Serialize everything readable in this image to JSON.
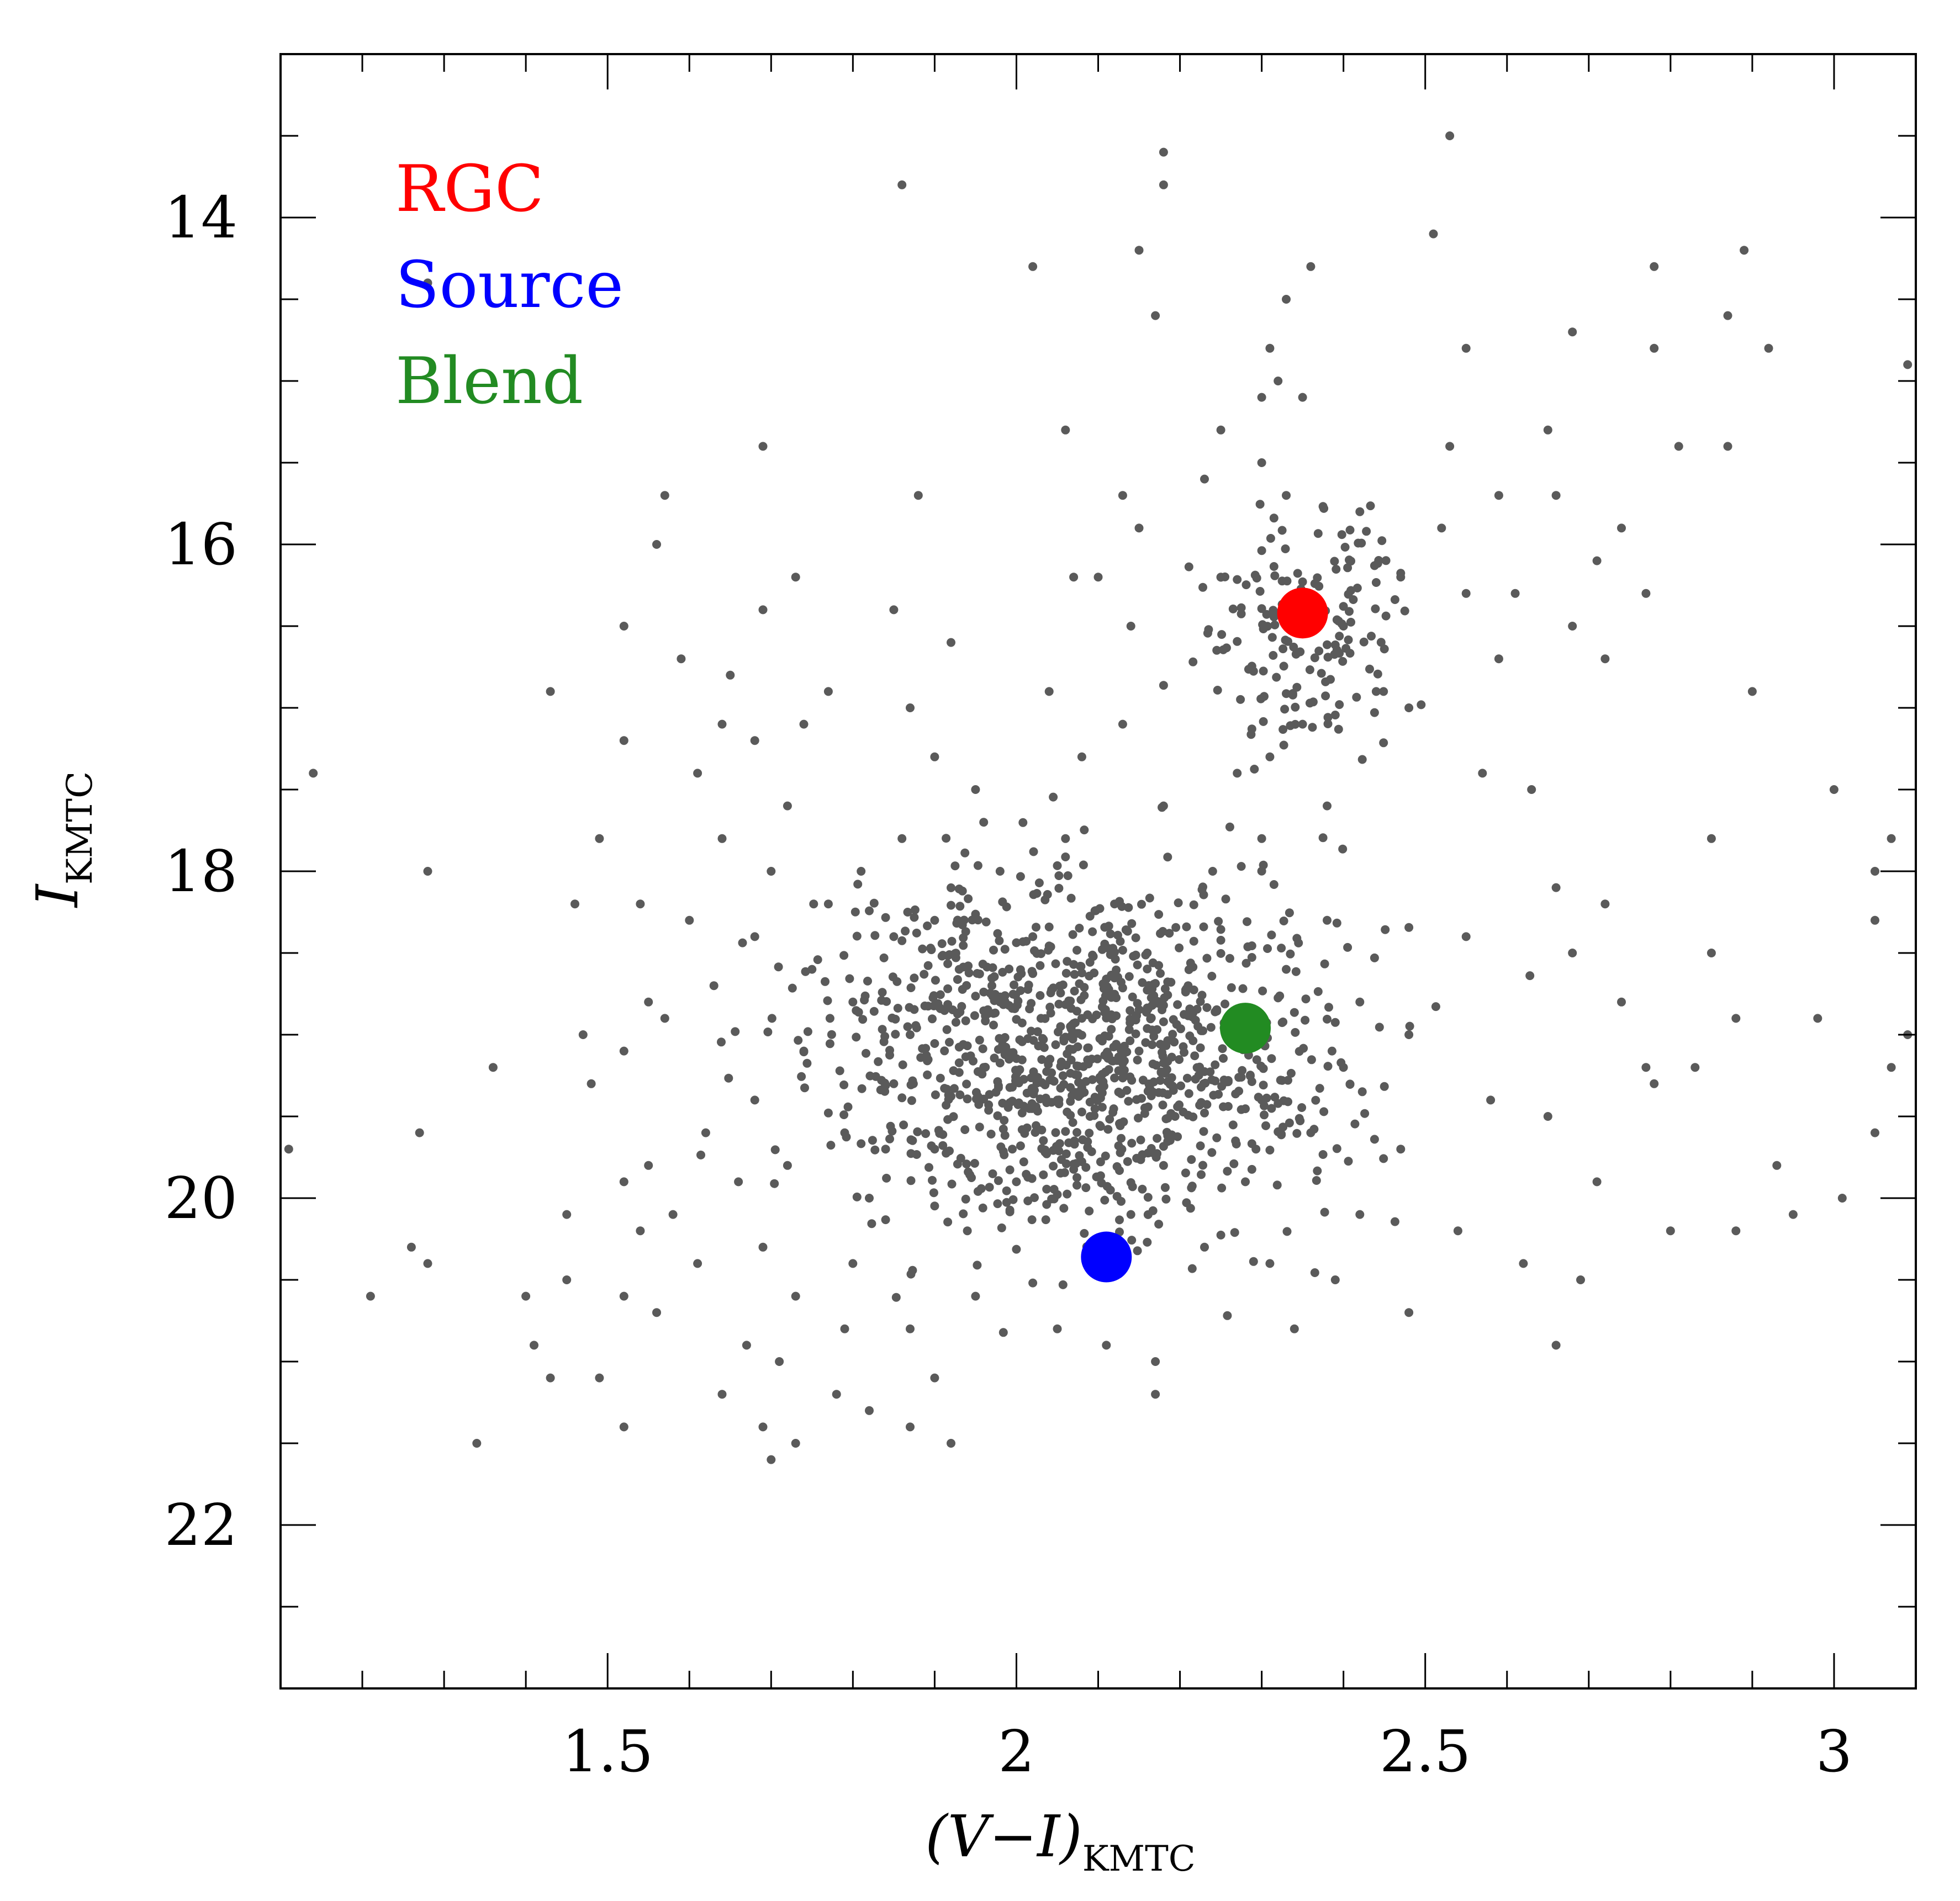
{
  "chart_data": {
    "type": "scatter",
    "title": "",
    "xlabel": "(V−I)",
    "xlabel_sub": "KMTC",
    "ylabel": "I",
    "ylabel_sub": "KMTC",
    "xlim": [
      1.1,
      3.1
    ],
    "ylim": [
      23,
      13
    ],
    "y_inverted": true,
    "x_major_ticks": [
      1.5,
      2,
      2.5,
      3
    ],
    "x_major_tick_labels": [
      "1.5",
      "2",
      "2.5",
      "3"
    ],
    "x_minor_step": 0.1,
    "y_major_ticks": [
      14,
      16,
      18,
      20,
      22
    ],
    "y_major_tick_labels": [
      "14",
      "16",
      "18",
      "20",
      "22"
    ],
    "y_minor_step": 0.5,
    "grid": false,
    "legend_position": "top-left",
    "background_star_color": "#5a5a5a",
    "highlight_series": [
      {
        "name": "RGC",
        "color": "#ff0000",
        "x": 2.35,
        "y": 16.42
      },
      {
        "name": "Source",
        "color": "#0000ff",
        "x": 2.11,
        "y": 20.36
      },
      {
        "name": "Blend",
        "color": "#228b22",
        "x": 2.28,
        "y": 18.96
      }
    ],
    "background_stars": {
      "count_approx": 1500,
      "points": [
        [
          2.18,
          13.6
        ],
        [
          2.53,
          13.5
        ],
        [
          1.86,
          13.8
        ],
        [
          2.18,
          13.8
        ],
        [
          2.51,
          14.1
        ],
        [
          2.15,
          14.2
        ],
        [
          2.02,
          14.3
        ],
        [
          2.36,
          14.3
        ],
        [
          2.78,
          14.3
        ],
        [
          2.89,
          14.2
        ],
        [
          1.28,
          14.4
        ],
        [
          2.33,
          14.5
        ],
        [
          2.17,
          14.6
        ],
        [
          2.87,
          14.6
        ],
        [
          2.31,
          14.8
        ],
        [
          2.55,
          14.8
        ],
        [
          2.68,
          14.7
        ],
        [
          2.78,
          14.8
        ],
        [
          2.92,
          14.8
        ],
        [
          3.09,
          14.9
        ],
        [
          2.32,
          15.0
        ],
        [
          2.3,
          15.1
        ],
        [
          2.35,
          15.1
        ],
        [
          2.06,
          15.3
        ],
        [
          2.25,
          15.3
        ],
        [
          2.53,
          15.4
        ],
        [
          2.65,
          15.3
        ],
        [
          2.81,
          15.4
        ],
        [
          2.87,
          15.4
        ],
        [
          1.69,
          15.4
        ],
        [
          2.3,
          15.5
        ],
        [
          1.88,
          15.7
        ],
        [
          2.13,
          15.7
        ],
        [
          2.23,
          15.6
        ],
        [
          2.33,
          15.7
        ],
        [
          2.59,
          15.7
        ],
        [
          2.66,
          15.7
        ],
        [
          1.57,
          15.7
        ],
        [
          2.42,
          15.8
        ],
        [
          2.52,
          15.9
        ],
        [
          2.74,
          15.9
        ],
        [
          2.15,
          15.9
        ],
        [
          1.56,
          16.0
        ],
        [
          2.71,
          16.1
        ],
        [
          1.73,
          16.2
        ],
        [
          2.07,
          16.2
        ],
        [
          2.1,
          16.2
        ],
        [
          2.25,
          16.2
        ],
        [
          2.47,
          16.2
        ],
        [
          2.55,
          16.3
        ],
        [
          2.61,
          16.3
        ],
        [
          2.77,
          16.3
        ],
        [
          1.52,
          16.5
        ],
        [
          1.69,
          16.4
        ],
        [
          1.85,
          16.4
        ],
        [
          2.14,
          16.5
        ],
        [
          2.4,
          16.5
        ],
        [
          2.68,
          16.5
        ],
        [
          1.59,
          16.7
        ],
        [
          1.92,
          16.6
        ],
        [
          2.59,
          16.7
        ],
        [
          2.72,
          16.7
        ],
        [
          1.43,
          16.9
        ],
        [
          1.65,
          16.8
        ],
        [
          1.77,
          16.9
        ],
        [
          2.04,
          16.9
        ],
        [
          2.44,
          16.9
        ],
        [
          2.9,
          16.9
        ],
        [
          1.64,
          17.1
        ],
        [
          1.74,
          17.1
        ],
        [
          1.87,
          17.0
        ],
        [
          2.13,
          17.1
        ],
        [
          2.35,
          17.1
        ],
        [
          2.48,
          17.0
        ],
        [
          1.52,
          17.2
        ],
        [
          1.68,
          17.2
        ],
        [
          1.9,
          17.3
        ],
        [
          2.08,
          17.3
        ],
        [
          2.31,
          17.3
        ],
        [
          1.14,
          17.4
        ],
        [
          1.61,
          17.4
        ],
        [
          1.95,
          17.5
        ],
        [
          2.27,
          17.4
        ],
        [
          2.57,
          17.4
        ],
        [
          2.63,
          17.5
        ],
        [
          1.72,
          17.6
        ],
        [
          1.96,
          17.7
        ],
        [
          2.18,
          17.6
        ],
        [
          2.38,
          17.6
        ],
        [
          3.0,
          17.5
        ],
        [
          1.49,
          17.8
        ],
        [
          1.64,
          17.8
        ],
        [
          1.86,
          17.8
        ],
        [
          2.06,
          17.8
        ],
        [
          2.3,
          17.8
        ],
        [
          2.85,
          17.8
        ],
        [
          3.07,
          17.8
        ],
        [
          1.28,
          18.0
        ],
        [
          1.7,
          18.0
        ],
        [
          1.81,
          18.0
        ],
        [
          1.98,
          18.0
        ],
        [
          2.24,
          18.0
        ],
        [
          2.66,
          18.1
        ],
        [
          3.05,
          18.0
        ],
        [
          1.46,
          18.2
        ],
        [
          1.54,
          18.2
        ],
        [
          1.77,
          18.2
        ],
        [
          1.9,
          18.3
        ],
        [
          2.12,
          18.2
        ],
        [
          2.38,
          18.3
        ],
        [
          2.72,
          18.2
        ],
        [
          1.6,
          18.3
        ],
        [
          1.68,
          18.4
        ],
        [
          1.85,
          18.4
        ],
        [
          2.02,
          18.4
        ],
        [
          2.55,
          18.4
        ],
        [
          3.05,
          18.3
        ],
        [
          1.75,
          18.6
        ],
        [
          1.93,
          18.6
        ],
        [
          2.16,
          18.5
        ],
        [
          2.33,
          18.6
        ],
        [
          2.68,
          18.5
        ],
        [
          2.85,
          18.5
        ],
        [
          1.55,
          18.8
        ],
        [
          1.63,
          18.7
        ],
        [
          1.8,
          18.8
        ],
        [
          1.98,
          18.8
        ],
        [
          2.21,
          18.7
        ],
        [
          2.42,
          18.8
        ],
        [
          2.74,
          18.8
        ],
        [
          1.57,
          18.9
        ],
        [
          1.47,
          19.0
        ],
        [
          1.87,
          19.0
        ],
        [
          2.03,
          18.9
        ],
        [
          2.48,
          19.0
        ],
        [
          2.88,
          18.9
        ],
        [
          2.98,
          18.9
        ],
        [
          3.09,
          19.0
        ],
        [
          1.36,
          19.2
        ],
        [
          1.52,
          19.1
        ],
        [
          1.74,
          19.1
        ],
        [
          1.96,
          19.2
        ],
        [
          2.15,
          19.1
        ],
        [
          2.4,
          19.2
        ],
        [
          2.77,
          19.2
        ],
        [
          2.83,
          19.2
        ],
        [
          3.07,
          19.2
        ],
        [
          1.48,
          19.3
        ],
        [
          1.68,
          19.4
        ],
        [
          1.85,
          19.3
        ],
        [
          2.05,
          19.4
        ],
        [
          2.3,
          19.4
        ],
        [
          2.58,
          19.4
        ],
        [
          2.78,
          19.3
        ],
        [
          1.27,
          19.6
        ],
        [
          1.62,
          19.6
        ],
        [
          1.79,
          19.6
        ],
        [
          2.09,
          19.5
        ],
        [
          2.36,
          19.6
        ],
        [
          2.65,
          19.5
        ],
        [
          3.05,
          19.6
        ],
        [
          1.11,
          19.7
        ],
        [
          1.55,
          19.8
        ],
        [
          1.72,
          19.8
        ],
        [
          1.9,
          19.7
        ],
        [
          2.18,
          19.8
        ],
        [
          2.47,
          19.7
        ],
        [
          2.93,
          19.8
        ],
        [
          1.52,
          19.9
        ],
        [
          1.66,
          19.9
        ],
        [
          2.0,
          19.9
        ],
        [
          2.28,
          19.9
        ],
        [
          2.71,
          19.9
        ],
        [
          3.01,
          20.0
        ],
        [
          1.45,
          20.1
        ],
        [
          1.58,
          20.1
        ],
        [
          1.82,
          20.0
        ],
        [
          2.14,
          20.1
        ],
        [
          2.42,
          20.1
        ],
        [
          2.95,
          20.1
        ],
        [
          1.26,
          20.3
        ],
        [
          1.54,
          20.2
        ],
        [
          1.69,
          20.3
        ],
        [
          1.94,
          20.2
        ],
        [
          2.23,
          20.3
        ],
        [
          2.54,
          20.2
        ],
        [
          2.8,
          20.2
        ],
        [
          2.88,
          20.2
        ],
        [
          1.28,
          20.4
        ],
        [
          1.61,
          20.4
        ],
        [
          1.8,
          20.4
        ],
        [
          2.31,
          20.4
        ],
        [
          2.62,
          20.4
        ],
        [
          1.21,
          20.6
        ],
        [
          1.45,
          20.5
        ],
        [
          1.52,
          20.6
        ],
        [
          1.73,
          20.6
        ],
        [
          1.95,
          20.6
        ],
        [
          2.39,
          20.5
        ],
        [
          2.69,
          20.5
        ],
        [
          1.4,
          20.6
        ],
        [
          1.56,
          20.7
        ],
        [
          1.87,
          20.8
        ],
        [
          2.05,
          20.8
        ],
        [
          2.34,
          20.8
        ],
        [
          2.48,
          20.7
        ],
        [
          1.41,
          20.9
        ],
        [
          1.67,
          20.9
        ],
        [
          1.79,
          20.8
        ],
        [
          2.11,
          20.9
        ],
        [
          2.66,
          20.9
        ],
        [
          1.43,
          21.1
        ],
        [
          1.49,
          21.1
        ],
        [
          1.71,
          21.0
        ],
        [
          1.9,
          21.1
        ],
        [
          2.17,
          21.0
        ],
        [
          1.64,
          21.2
        ],
        [
          1.78,
          21.2
        ],
        [
          2.17,
          21.2
        ],
        [
          1.52,
          21.4
        ],
        [
          1.69,
          21.4
        ],
        [
          1.82,
          21.3
        ],
        [
          1.34,
          21.5
        ],
        [
          1.73,
          21.5
        ],
        [
          1.87,
          21.4
        ],
        [
          1.92,
          21.5
        ],
        [
          1.7,
          21.6
        ]
      ]
    },
    "legend": [
      {
        "label": "RGC",
        "color": "#ff0000"
      },
      {
        "label": "Source",
        "color": "#0000ff"
      },
      {
        "label": "Blend",
        "color": "#228b22"
      }
    ]
  }
}
